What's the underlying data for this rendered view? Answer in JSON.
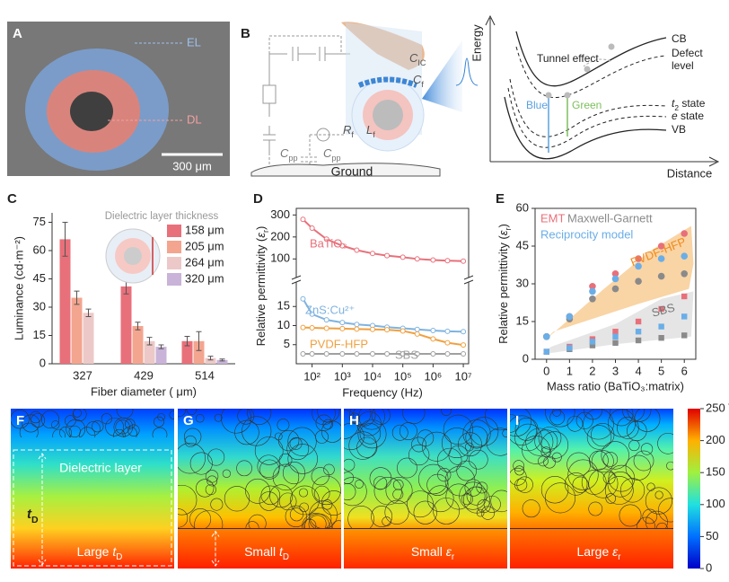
{
  "panel_a": {
    "letter": "A",
    "outer_layer": "EL",
    "inner_layer": "DL",
    "scale_bar": "300 μm"
  },
  "panel_b": {
    "letter": "B",
    "circuit": {
      "c_ic": {
        "symbol": "C",
        "sub": "IC"
      },
      "c_f": {
        "symbol": "C",
        "sub": "f"
      },
      "r_f": {
        "symbol": "R",
        "sub": "f"
      },
      "l_f": {
        "symbol": "L",
        "sub": "f"
      },
      "c_pp_left": {
        "symbol": "C",
        "sub": "pp"
      },
      "c_pp_right": {
        "symbol": "C",
        "sub": "pp"
      },
      "ground": "Ground"
    },
    "energy_diagram": {
      "y_label": "Energy",
      "x_label": "Distance",
      "cb": "CB",
      "defect_level": [
        "Defect",
        "level"
      ],
      "tunnel": "Tunnel effect",
      "blue": "Blue",
      "green": "Green",
      "t2_state": {
        "symbol": "t",
        "sub": "2",
        "suffix": " state"
      },
      "e_state": {
        "symbol": "e",
        "suffix": " state"
      },
      "vb": "VB"
    }
  },
  "chart_data": [
    {
      "type": "bar",
      "letter": "C",
      "categories": [
        "327",
        "429",
        "514"
      ],
      "x_label": "Fiber diameter ( μm)",
      "y_label": "Luminance (cd·m⁻²)",
      "legend_title": "Dielectric layer thickness",
      "ylim": [
        0,
        80
      ],
      "yticks": [
        0,
        15,
        30,
        45,
        60,
        75
      ],
      "series": [
        {
          "name": "158 μm",
          "color": "#e8707a",
          "values": [
            66,
            41,
            12
          ],
          "errors": [
            9,
            4,
            2.5
          ]
        },
        {
          "name": "205 μm",
          "color": "#f3a58f",
          "values": [
            35,
            20,
            12
          ],
          "errors": [
            3.5,
            2,
            5
          ]
        },
        {
          "name": "264 μm",
          "color": "#ecc9c8",
          "values": [
            27,
            12,
            3
          ],
          "errors": [
            2,
            2,
            1
          ]
        },
        {
          "name": "320 μm",
          "color": "#c9b3d8",
          "values": [
            null,
            9,
            2
          ],
          "errors": [
            null,
            1,
            0.5
          ]
        }
      ]
    },
    {
      "type": "line",
      "letter": "D",
      "x_label": "Frequency (Hz)",
      "y_label": {
        "prefix": "Relative permittivity (",
        "symbol": "ε",
        "sub": "r",
        "suffix": ")"
      },
      "log_x": true,
      "x": [
        50,
        100,
        300,
        1000,
        3000,
        10000,
        30000,
        100000,
        300000,
        1000000,
        3000000,
        10000000
      ],
      "xlim": [
        30,
        15000000
      ],
      "xticks": [
        {
          "value": 100,
          "label": "10²"
        },
        {
          "value": 1000,
          "label": "10³"
        },
        {
          "value": 10000,
          "label": "10⁴"
        },
        {
          "value": 100000,
          "label": "10⁵"
        },
        {
          "value": 1000000,
          "label": "10⁶"
        },
        {
          "value": 10000000,
          "label": "10⁷"
        }
      ],
      "ylim": [
        0,
        20
      ],
      "yticks": [
        5,
        10,
        15
      ],
      "upper_ylim": [
        40,
        330
      ],
      "upper_yticks": [
        100,
        200,
        300
      ],
      "series": [
        {
          "name": "BaTiO₃",
          "color": "#e8707a",
          "axis": "upper",
          "values": [
            280,
            240,
            190,
            160,
            140,
            125,
            115,
            108,
            100,
            95,
            92,
            90
          ]
        },
        {
          "name": "ZnS:Cu²⁺",
          "color": "#7fb3e0",
          "values": [
            17,
            13,
            11.5,
            10.8,
            10.3,
            10,
            9.6,
            9.3,
            9,
            8.7,
            8.5,
            8.4
          ]
        },
        {
          "name": "PVDF-HFP",
          "color": "#f0a040",
          "values": [
            9.5,
            9.4,
            9.3,
            9.2,
            9.1,
            9,
            8.9,
            8.6,
            7.8,
            6.5,
            5.5,
            4.9
          ]
        },
        {
          "name": "SBS",
          "color": "#a0a0a0",
          "values": [
            2.6,
            2.6,
            2.6,
            2.6,
            2.6,
            2.6,
            2.6,
            2.6,
            2.6,
            2.6,
            2.6,
            2.6
          ]
        }
      ]
    },
    {
      "type": "scatter",
      "letter": "E",
      "x_label": "Mass ratio (BaTiO₃:matrix)",
      "y_label": {
        "prefix": "Relative permittivity (",
        "symbol": "ε",
        "sub": "r",
        "suffix": ")"
      },
      "x": [
        0,
        1,
        2,
        3,
        4,
        5,
        6
      ],
      "xlim": [
        -0.5,
        6.5
      ],
      "xticks": [
        0,
        1,
        2,
        3,
        4,
        5,
        6
      ],
      "ylim": [
        0,
        60
      ],
      "yticks": [
        0,
        15,
        30,
        45,
        60
      ],
      "models": [
        {
          "name": "EMT",
          "color": "#e8707a"
        },
        {
          "name": "Maxwell-Garnett",
          "color": "#8a8a8a"
        },
        {
          "name": "Reciprocity model",
          "color": "#6aaee8"
        }
      ],
      "groups": [
        {
          "label": "PVDF-HFP",
          "color": "#f7c98f",
          "marker": "circle",
          "series": [
            {
              "values": [
                9,
                17,
                29,
                34,
                40,
                45,
                50
              ]
            },
            {
              "values": [
                9,
                16,
                24,
                28,
                31,
                33,
                34
              ]
            },
            {
              "values": [
                9,
                17,
                27,
                32,
                37,
                40,
                41
              ]
            }
          ]
        },
        {
          "label": "SBS",
          "color": "#dedede",
          "marker": "square",
          "series": [
            {
              "values": [
                3,
                5,
                8,
                11,
                15,
                20,
                25
              ]
            },
            {
              "values": [
                3,
                4,
                5.5,
                6.5,
                7.5,
                8.5,
                9.5
              ]
            },
            {
              "values": [
                3,
                4.5,
                7,
                9,
                11,
                13,
                17
              ]
            }
          ]
        }
      ]
    }
  ],
  "panels_fi": {
    "layer_label": "Dielectric layer",
    "thickness": {
      "symbol": "t",
      "sub": "D"
    },
    "panels": [
      {
        "letter": "F",
        "caption": {
          "prefix": "Large ",
          "symbol": "t",
          "sub": "D"
        }
      },
      {
        "letter": "G",
        "caption": {
          "prefix": "Small ",
          "symbol": "t",
          "sub": "D"
        }
      },
      {
        "letter": "H",
        "caption": {
          "prefix": "Small ",
          "symbol": "ε",
          "sub": "r"
        }
      },
      {
        "letter": "I",
        "caption": {
          "prefix": "Large ",
          "symbol": "ε",
          "sub": "r"
        }
      }
    ],
    "colorbar": {
      "lim": [
        0,
        250
      ],
      "ticks": [
        0,
        50,
        100,
        150,
        200,
        {
          "value": 250,
          "label": "250 V"
        }
      ]
    }
  }
}
